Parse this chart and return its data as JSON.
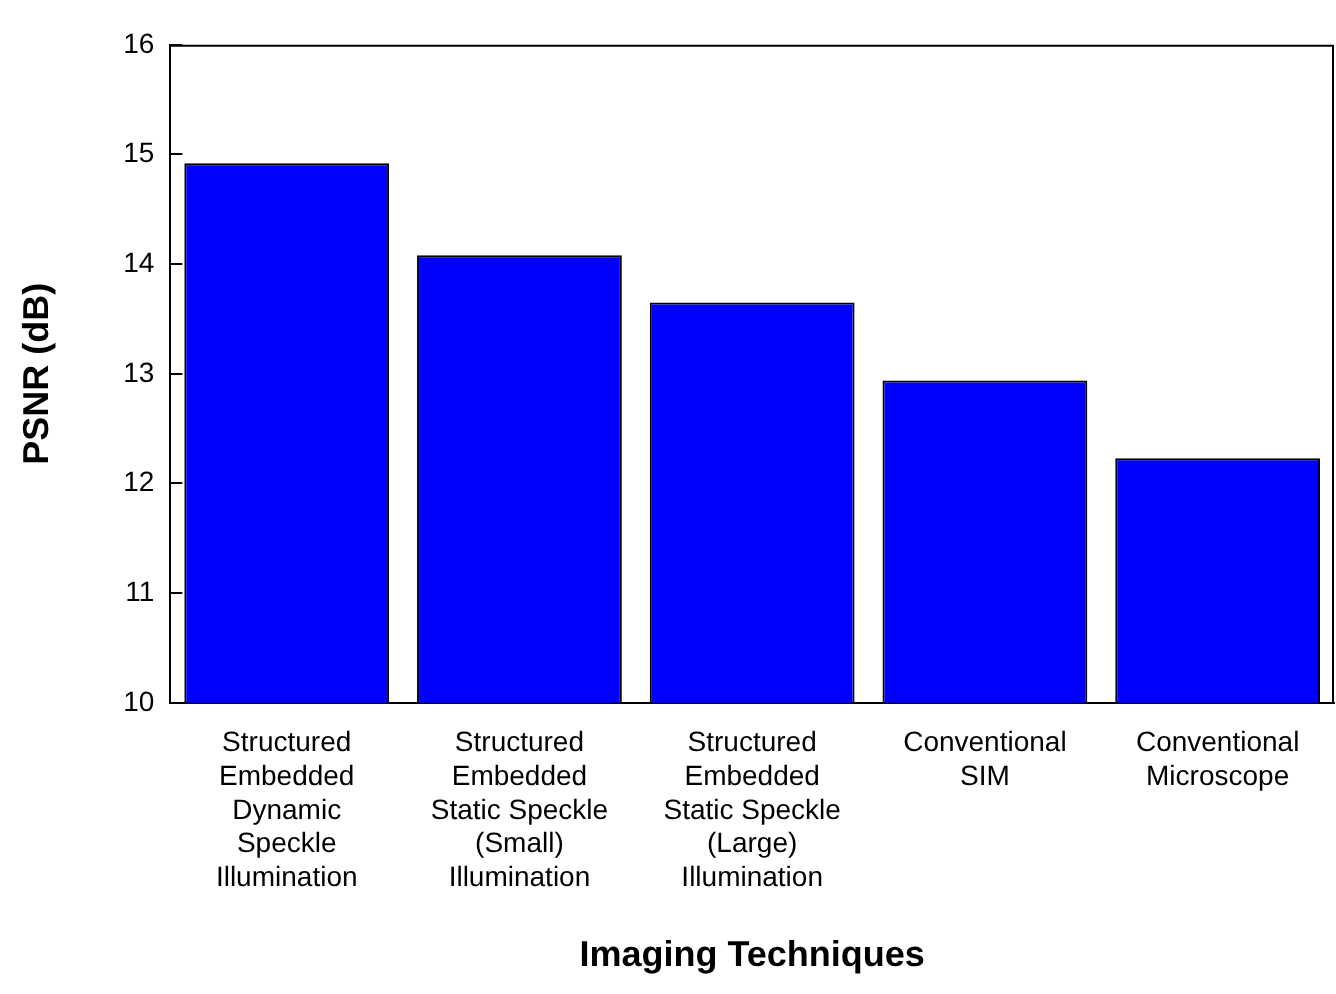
{
  "chart_data": {
    "type": "bar",
    "xlabel": "Imaging Techniques",
    "ylabel": "PSNR (dB)",
    "categories": [
      "Structured\nEmbedded\nDynamic\nSpeckle\nIllumination",
      "Structured\nEmbedded\nStatic Speckle\n(Small)\nIllumination",
      "Structured\nEmbedded\nStatic Speckle\n(Large)\nIllumination",
      "Conventional\nSIM",
      "Conventional\nMicroscope"
    ],
    "values": [
      14.92,
      14.08,
      13.65,
      12.94,
      12.23
    ],
    "color": "#0000ff",
    "ylim": [
      10,
      16
    ],
    "yticks": [
      10,
      11,
      12,
      13,
      14,
      15,
      16
    ],
    "grid": false,
    "legend": false
  }
}
